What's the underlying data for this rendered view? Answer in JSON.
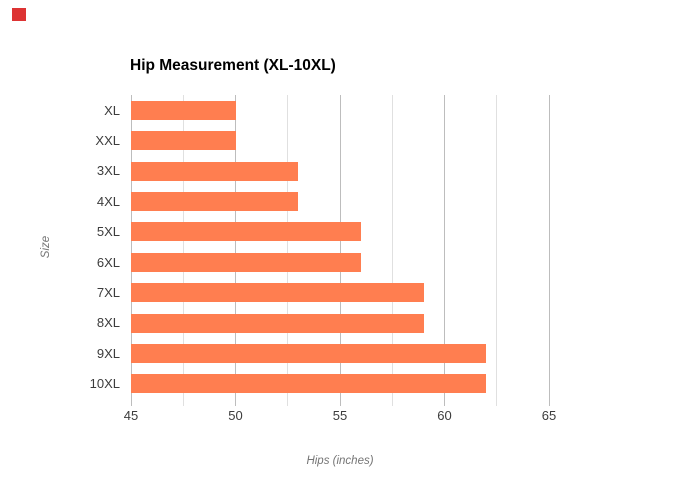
{
  "page": {
    "background_color": "#ffffff",
    "corner_marker_color": "#dd3333"
  },
  "chart_data": {
    "type": "bar",
    "orientation": "horizontal",
    "title": "Hip Measurement (XL-10XL)",
    "categories": [
      "XL",
      "XXL",
      "3XL",
      "4XL",
      "5XL",
      "6XL",
      "7XL",
      "8XL",
      "9XL",
      "10XL"
    ],
    "values": [
      50,
      50,
      53,
      53,
      56,
      56,
      59,
      59,
      62,
      62
    ],
    "xlabel": "Hips (inches)",
    "ylabel": "Size",
    "xlim": [
      45,
      65
    ],
    "x_ticks": [
      45,
      50,
      55,
      60,
      65
    ],
    "minor_tick_step": 2.5,
    "grid": "vertical-only",
    "legend": "none",
    "colors": {
      "bar": "#ff7e50",
      "grid_major": "#bdbdbd",
      "grid_minor": "#e0e0e0",
      "tick_label": "#3c3c3c",
      "axis_title": "#757575",
      "title": "#000000"
    }
  }
}
